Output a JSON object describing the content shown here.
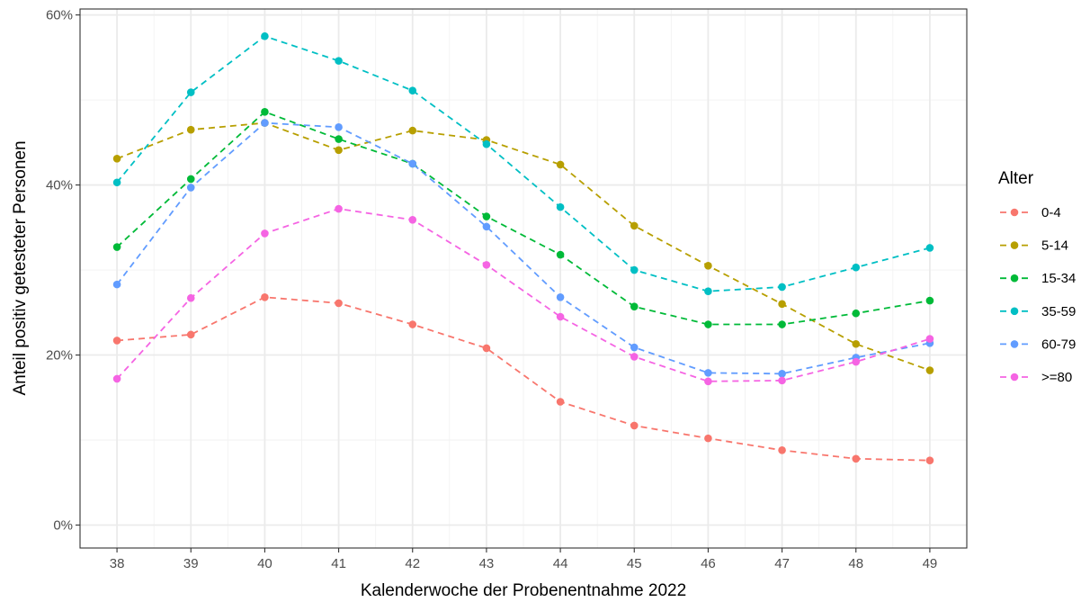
{
  "chart_data": {
    "type": "line",
    "x": [
      38,
      39,
      40,
      41,
      42,
      43,
      44,
      45,
      46,
      47,
      48,
      49
    ],
    "xlabel": "Kalenderwoche der Probenentnahme 2022",
    "ylabel": "Anteil positiv getesteter Personen",
    "ylim": [
      0,
      60
    ],
    "y_ticks": [
      0,
      20,
      40,
      60
    ],
    "y_tick_labels": [
      "0%",
      "20%",
      "40%",
      "60%"
    ],
    "grid": true,
    "line_style": "dashed",
    "legend": {
      "title": "Alter",
      "position": "right"
    },
    "series": [
      {
        "name": "0-4",
        "color": "#F8766D",
        "values": [
          21.7,
          22.4,
          26.8,
          26.1,
          23.6,
          20.8,
          14.5,
          11.7,
          10.2,
          8.8,
          7.8,
          7.6
        ]
      },
      {
        "name": "5-14",
        "color": "#B79F00",
        "values": [
          43.1,
          46.5,
          47.3,
          44.1,
          46.4,
          45.3,
          42.4,
          35.2,
          30.5,
          26.0,
          21.3,
          18.2
        ]
      },
      {
        "name": "15-34",
        "color": "#00BA38",
        "values": [
          32.7,
          40.7,
          48.6,
          45.4,
          42.5,
          36.3,
          31.8,
          25.7,
          23.6,
          23.6,
          24.9,
          26.4
        ]
      },
      {
        "name": "35-59",
        "color": "#00BFC4",
        "values": [
          40.3,
          50.9,
          57.5,
          54.6,
          51.1,
          44.8,
          37.4,
          30.0,
          27.5,
          28.0,
          30.3,
          32.6
        ]
      },
      {
        "name": "60-79",
        "color": "#619CFF",
        "values": [
          28.3,
          39.7,
          47.3,
          46.8,
          42.5,
          35.1,
          26.8,
          20.9,
          17.9,
          17.8,
          19.7,
          21.4
        ]
      },
      {
        "name": ">=80",
        "color": "#F564E3",
        "values": [
          17.2,
          26.7,
          34.3,
          37.2,
          35.9,
          30.6,
          24.5,
          19.8,
          16.9,
          17.0,
          19.2,
          21.9
        ]
      }
    ]
  }
}
